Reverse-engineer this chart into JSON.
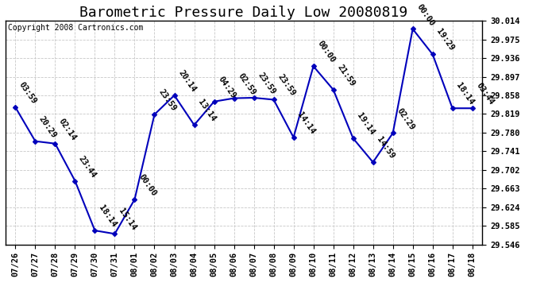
{
  "title": "Barometric Pressure Daily Low 20080819",
  "copyright": "Copyright 2008 Cartronics.com",
  "x_labels": [
    "07/26",
    "07/27",
    "07/28",
    "07/29",
    "07/30",
    "07/31",
    "08/01",
    "08/02",
    "08/03",
    "08/04",
    "08/05",
    "08/06",
    "08/07",
    "08/08",
    "08/09",
    "08/10",
    "08/11",
    "08/12",
    "08/13",
    "08/14",
    "08/15",
    "08/16",
    "08/17",
    "08/18"
  ],
  "y_values": [
    29.833,
    29.762,
    29.757,
    29.679,
    29.575,
    29.568,
    29.64,
    29.818,
    29.858,
    29.796,
    29.845,
    29.852,
    29.853,
    29.849,
    29.77,
    29.919,
    29.87,
    29.768,
    29.718,
    29.779,
    29.997,
    29.944,
    29.831,
    29.831
  ],
  "point_labels": [
    "03:59",
    "20:29",
    "02:14",
    "23:44",
    "18:14",
    "15:14",
    "00:00",
    "23:59",
    "20:14",
    "13:14",
    "04:29",
    "02:59",
    "23:59",
    "23:59",
    "14:14",
    "00:00",
    "21:59",
    "19:14",
    "14:59",
    "02:29",
    "00:00",
    "19:29",
    "18:14",
    "03:44"
  ],
  "line_color": "#0000bb",
  "marker_color": "#0000bb",
  "bg_color": "#ffffff",
  "grid_color": "#c8c8c8",
  "ylim_min": 29.546,
  "ylim_max": 30.014,
  "yticks": [
    29.546,
    29.585,
    29.624,
    29.663,
    29.702,
    29.741,
    29.78,
    29.819,
    29.858,
    29.897,
    29.936,
    29.975,
    30.014
  ],
  "title_fontsize": 13,
  "label_fontsize": 7.5,
  "tick_fontsize": 7.5,
  "copyright_fontsize": 7
}
